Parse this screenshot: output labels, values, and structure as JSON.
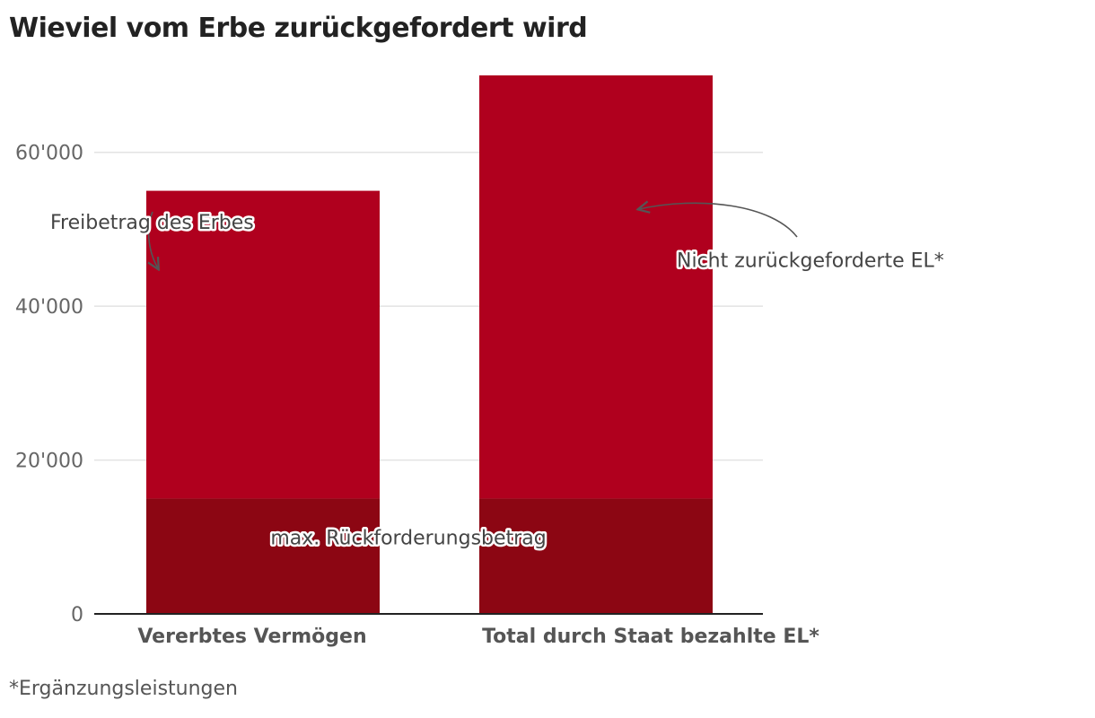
{
  "chart_data": {
    "type": "bar",
    "stacked": true,
    "title": "Wieviel vom Erbe zurückgefordert wird",
    "categories": [
      "Vererbtes Vermögen",
      "Total durch Staat bezahlte EL*"
    ],
    "series": [
      {
        "values": [
          15000,
          15000
        ],
        "color": "#8c0613"
      },
      {
        "values": [
          40000,
          55000
        ],
        "color": "#b0001e"
      }
    ],
    "ylim": [
      0,
      70000
    ],
    "yticks": [
      0,
      20000,
      40000,
      60000
    ],
    "ytick_labels": [
      "0",
      "20'000",
      "40'000",
      "60'000"
    ],
    "grid": true,
    "annotations": [
      {
        "text": "Freibetrag des Erbes",
        "category": 0,
        "value": 51000
      },
      {
        "text": "Nicht zurückgeforderte EL*",
        "category": 1,
        "value": 46000
      },
      {
        "text": "max. Rückforderungsbetrag",
        "category": 0,
        "value": 10000
      }
    ]
  },
  "footnote": "*Ergänzungsleistungen"
}
